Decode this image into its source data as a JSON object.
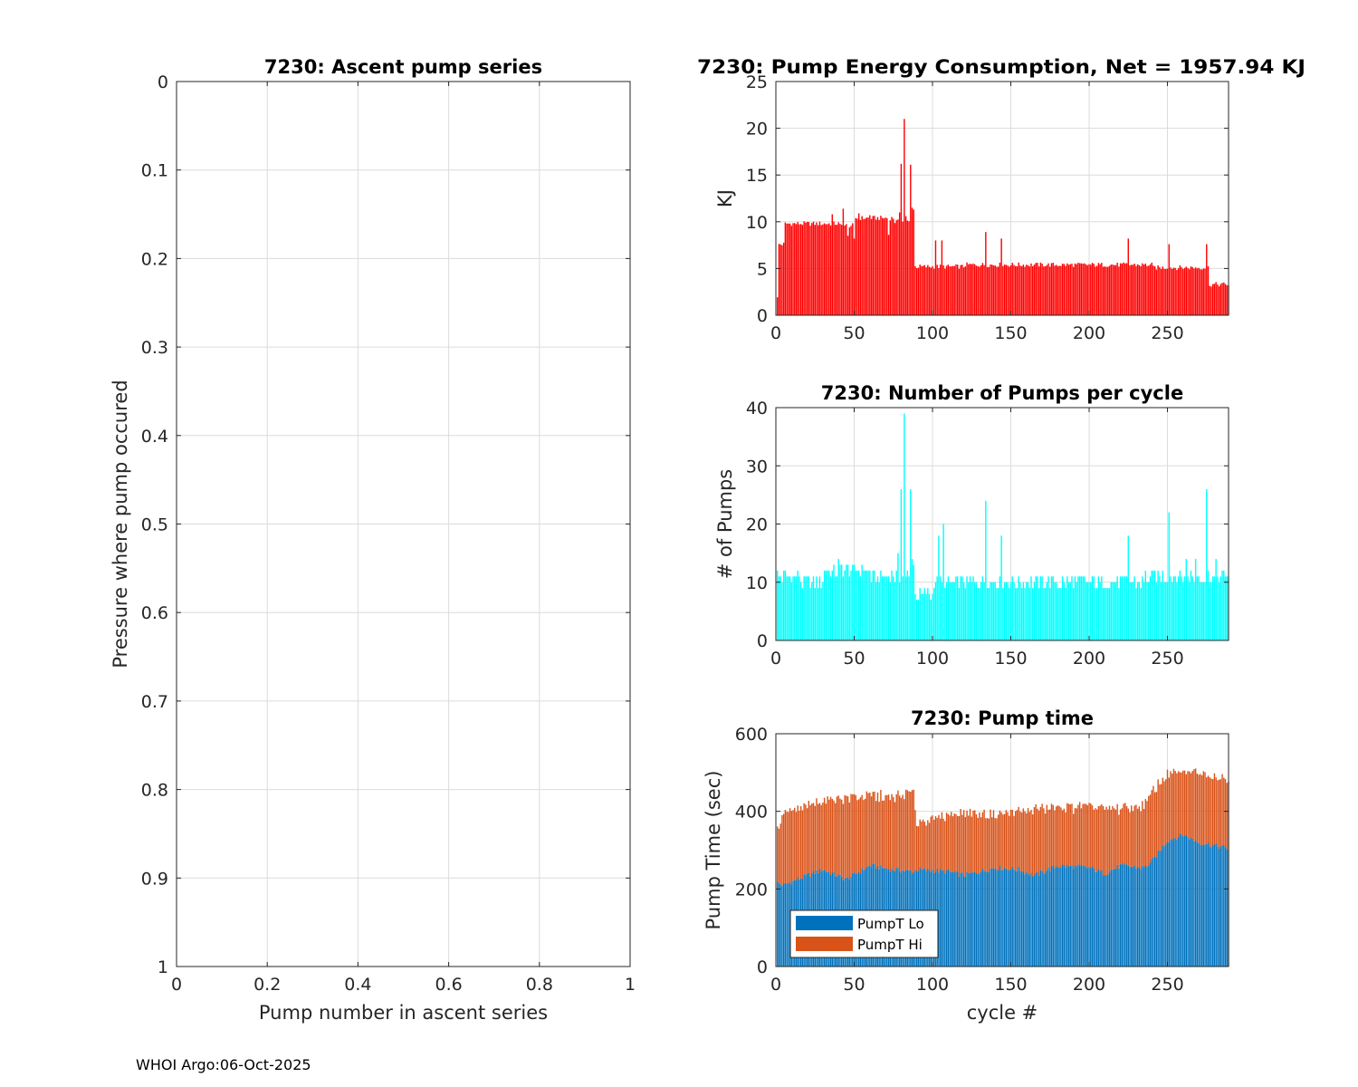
{
  "footer": "WHOI Argo:06-Oct-2025",
  "chart_data": [
    {
      "id": "ascent",
      "type": "scatter",
      "title": "7230: Ascent pump series",
      "xlabel": "Pump number in ascent series",
      "ylabel": "Pressure where pump occured",
      "xlim": [
        0,
        1
      ],
      "ylim": [
        0,
        1
      ],
      "y_reversed": true,
      "xticks": [
        0,
        0.2,
        0.4,
        0.6,
        0.8,
        1
      ],
      "xtick_labels": [
        "0",
        "0.2",
        "0.4",
        "0.6",
        "0.8",
        "1"
      ],
      "yticks": [
        0,
        0.1,
        0.2,
        0.3,
        0.4,
        0.5,
        0.6,
        0.7,
        0.8,
        0.9,
        1
      ],
      "ytick_labels": [
        "0",
        "0.1",
        "0.2",
        "0.3",
        "0.4",
        "0.5",
        "0.6",
        "0.7",
        "0.8",
        "0.9",
        "1"
      ],
      "grid": true,
      "x": [],
      "y": []
    },
    {
      "id": "energy",
      "type": "bar",
      "title": "7230: Pump Energy Consumption,  Net = 1957.94 KJ",
      "xlabel": "",
      "ylabel": "KJ",
      "color": "#ff0000",
      "xlim": [
        0,
        289
      ],
      "ylim": [
        0,
        25
      ],
      "xticks": [
        0,
        50,
        100,
        150,
        200,
        250
      ],
      "xtick_labels": [
        "0",
        "50",
        "100",
        "150",
        "200",
        "250"
      ],
      "yticks": [
        0,
        5,
        10,
        15,
        20,
        25
      ],
      "ytick_labels": [
        "0",
        "5",
        "10",
        "15",
        "20",
        "25"
      ],
      "grid": true,
      "x_start": 1,
      "segments": [
        {
          "from": 1,
          "to": 1,
          "value": 1.8
        },
        {
          "from": 2,
          "to": 5,
          "value": 7.6
        },
        {
          "from": 6,
          "to": 40,
          "value": 9.8
        },
        {
          "from": 41,
          "to": 50,
          "value": 9.6
        },
        {
          "from": 51,
          "to": 75,
          "value": 10.4
        },
        {
          "from": 76,
          "to": 88,
          "value": 10.0
        },
        {
          "from": 89,
          "to": 120,
          "value": 5.2
        },
        {
          "from": 121,
          "to": 240,
          "value": 5.4
        },
        {
          "from": 241,
          "to": 276,
          "value": 5.1
        },
        {
          "from": 277,
          "to": 289,
          "value": 3.3
        }
      ],
      "spikes": [
        {
          "x": 36,
          "value": 10.8
        },
        {
          "x": 43,
          "value": 11.4
        },
        {
          "x": 46,
          "value": 8.5
        },
        {
          "x": 50,
          "value": 8.2
        },
        {
          "x": 53,
          "value": 10.9
        },
        {
          "x": 60,
          "value": 10.7
        },
        {
          "x": 72,
          "value": 8.6
        },
        {
          "x": 79,
          "value": 11.0
        },
        {
          "x": 80,
          "value": 16.2
        },
        {
          "x": 82,
          "value": 21.0
        },
        {
          "x": 83,
          "value": 10.6
        },
        {
          "x": 86,
          "value": 16.1
        },
        {
          "x": 87,
          "value": 11.5
        },
        {
          "x": 88,
          "value": 11.3
        },
        {
          "x": 102,
          "value": 8.0
        },
        {
          "x": 106,
          "value": 8.0
        },
        {
          "x": 134,
          "value": 8.9
        },
        {
          "x": 144,
          "value": 8.2
        },
        {
          "x": 225,
          "value": 8.2
        },
        {
          "x": 251,
          "value": 7.6
        },
        {
          "x": 275,
          "value": 7.6
        }
      ]
    },
    {
      "id": "pumps",
      "type": "bar",
      "title": "7230: Number of Pumps per cycle",
      "xlabel": "",
      "ylabel": "# of Pumps",
      "color": "#00ffff",
      "xlim": [
        0,
        289
      ],
      "ylim": [
        0,
        40
      ],
      "xticks": [
        0,
        50,
        100,
        150,
        200,
        250
      ],
      "xtick_labels": [
        "0",
        "50",
        "100",
        "150",
        "200",
        "250"
      ],
      "yticks": [
        0,
        10,
        20,
        30,
        40
      ],
      "ytick_labels": [
        "0",
        "10",
        "20",
        "30",
        "40"
      ],
      "grid": true,
      "x_start": 1,
      "segments": [
        {
          "from": 1,
          "to": 15,
          "value": 11
        },
        {
          "from": 16,
          "to": 30,
          "value": 10
        },
        {
          "from": 31,
          "to": 60,
          "value": 12
        },
        {
          "from": 61,
          "to": 88,
          "value": 11
        },
        {
          "from": 89,
          "to": 100,
          "value": 8
        },
        {
          "from": 101,
          "to": 130,
          "value": 10
        },
        {
          "from": 131,
          "to": 190,
          "value": 10
        },
        {
          "from": 191,
          "to": 235,
          "value": 10
        },
        {
          "from": 236,
          "to": 270,
          "value": 11
        },
        {
          "from": 271,
          "to": 289,
          "value": 11
        }
      ],
      "spikes": [
        {
          "x": 40,
          "value": 14
        },
        {
          "x": 42,
          "value": 13
        },
        {
          "x": 78,
          "value": 15
        },
        {
          "x": 80,
          "value": 26
        },
        {
          "x": 82,
          "value": 39
        },
        {
          "x": 86,
          "value": 26
        },
        {
          "x": 87,
          "value": 14
        },
        {
          "x": 88,
          "value": 13
        },
        {
          "x": 104,
          "value": 18
        },
        {
          "x": 107,
          "value": 20
        },
        {
          "x": 134,
          "value": 24
        },
        {
          "x": 144,
          "value": 18
        },
        {
          "x": 225,
          "value": 18
        },
        {
          "x": 251,
          "value": 22
        },
        {
          "x": 262,
          "value": 14
        },
        {
          "x": 268,
          "value": 14
        },
        {
          "x": 275,
          "value": 26
        },
        {
          "x": 281,
          "value": 14
        }
      ]
    },
    {
      "id": "pumptime",
      "type": "bar",
      "stacked": true,
      "title": "7230: Pump time",
      "xlabel": "cycle #",
      "ylabel": "Pump Time (sec)",
      "xlim": [
        0,
        289
      ],
      "ylim": [
        0,
        600
      ],
      "xticks": [
        0,
        50,
        100,
        150,
        200,
        250
      ],
      "xtick_labels": [
        "0",
        "50",
        "100",
        "150",
        "200",
        "250"
      ],
      "yticks": [
        0,
        200,
        400,
        600
      ],
      "ytick_labels": [
        "0",
        "200",
        "400",
        "600"
      ],
      "grid": true,
      "legend_position": "bottom-left",
      "x_start": 1,
      "series": [
        {
          "name": "PumpT Lo",
          "color": "#0072bd",
          "anchors": [
            [
              1,
              215
            ],
            [
              5,
              210
            ],
            [
              20,
              235
            ],
            [
              30,
              250
            ],
            [
              45,
              225
            ],
            [
              60,
              260
            ],
            [
              75,
              250
            ],
            [
              88,
              245
            ],
            [
              90,
              250
            ],
            [
              110,
              245
            ],
            [
              120,
              235
            ],
            [
              140,
              255
            ],
            [
              155,
              250
            ],
            [
              165,
              235
            ],
            [
              180,
              260
            ],
            [
              200,
              255
            ],
            [
              210,
              240
            ],
            [
              220,
              260
            ],
            [
              235,
              255
            ],
            [
              240,
              270
            ],
            [
              250,
              325
            ],
            [
              260,
              340
            ],
            [
              270,
              320
            ],
            [
              289,
              305
            ]
          ]
        },
        {
          "name": "PumpT Hi",
          "color": "#d95319",
          "anchors": [
            [
              1,
              135
            ],
            [
              5,
              185
            ],
            [
              20,
              175
            ],
            [
              30,
              180
            ],
            [
              45,
              210
            ],
            [
              60,
              180
            ],
            [
              75,
              185
            ],
            [
              88,
              205
            ],
            [
              90,
              120
            ],
            [
              110,
              145
            ],
            [
              120,
              160
            ],
            [
              140,
              140
            ],
            [
              155,
              150
            ],
            [
              165,
              170
            ],
            [
              180,
              150
            ],
            [
              200,
              155
            ],
            [
              210,
              170
            ],
            [
              220,
              145
            ],
            [
              235,
              160
            ],
            [
              240,
              175
            ],
            [
              250,
              175
            ],
            [
              260,
              160
            ],
            [
              270,
              185
            ],
            [
              289,
              175
            ]
          ]
        }
      ]
    }
  ]
}
